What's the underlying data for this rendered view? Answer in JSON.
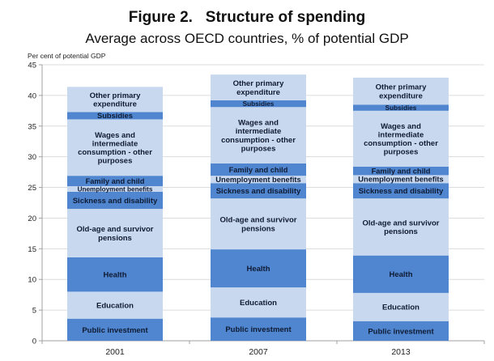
{
  "chart_data": {
    "type": "bar",
    "stacked": true,
    "title": "Figure 2.   Structure of spending",
    "subtitle": "Average across OECD countries, % of potential GDP",
    "xlabel": "",
    "ylabel": "Per cent of potential GDP",
    "ylim": [
      0,
      45
    ],
    "yticks": [
      0,
      5,
      10,
      15,
      20,
      25,
      30,
      35,
      40,
      45
    ],
    "grid": true,
    "categories": [
      "2001",
      "2007",
      "2013"
    ],
    "colors": {
      "dark": "#4f86cf",
      "light": "#c8d9ef",
      "grid": "#dcdcdc",
      "axis": "#a0a0a0"
    },
    "series": [
      {
        "name": "Public investment",
        "shade": "dark",
        "label_lines": [
          "Public investment"
        ],
        "values": [
          3.6,
          3.8,
          3.2
        ]
      },
      {
        "name": "Education",
        "shade": "light",
        "label_lines": [
          "Education"
        ],
        "values": [
          4.4,
          4.9,
          4.6
        ]
      },
      {
        "name": "Health",
        "shade": "dark",
        "label_lines": [
          "Health"
        ],
        "values": [
          5.6,
          6.2,
          6.1
        ]
      },
      {
        "name": "Old-age and survivor pensions",
        "shade": "light",
        "label_lines": [
          "Old-age and survivor",
          "pensions"
        ],
        "values": [
          7.9,
          8.3,
          9.3
        ]
      },
      {
        "name": "Sickness and disability",
        "shade": "dark",
        "label_lines": [
          "Sickness and disability"
        ],
        "values": [
          2.8,
          2.5,
          2.5
        ]
      },
      {
        "name": "Unemployment benefits",
        "shade": "light",
        "label_lines": [
          "Unemployment benefits"
        ],
        "values": [
          0.9,
          1.2,
          1.3
        ]
      },
      {
        "name": "Family and child",
        "shade": "dark",
        "label_lines": [
          "Family and child"
        ],
        "values": [
          1.7,
          2.0,
          1.4
        ]
      },
      {
        "name": "Wages and intermediate consumption - other purposes",
        "shade": "light",
        "label_lines": [
          "Wages and",
          "intermediate",
          "consumption - other",
          "purposes"
        ],
        "values": [
          9.2,
          9.2,
          9.1
        ]
      },
      {
        "name": "Subsidies",
        "shade": "dark",
        "label_lines": [
          "Subsidies"
        ],
        "values": [
          1.2,
          1.1,
          1.0
        ]
      },
      {
        "name": "Other primary expenditure",
        "shade": "light",
        "label_lines": [
          "Other primary",
          "expenditure"
        ],
        "values": [
          4.1,
          4.2,
          4.4
        ]
      }
    ]
  }
}
